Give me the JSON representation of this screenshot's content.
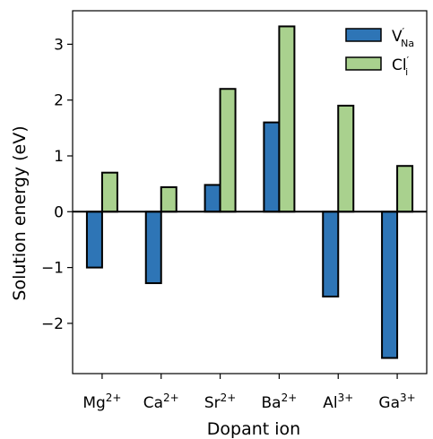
{
  "chart_data": {
    "type": "bar",
    "xlabel": "Dopant ion",
    "ylabel": "Solution energy (eV)",
    "ylim": [
      -2.9,
      3.6
    ],
    "yticks": [
      -2,
      -1,
      0,
      1,
      2,
      3
    ],
    "grid": false,
    "legend_position": "top-right",
    "categories": [
      {
        "base": "Mg",
        "sup": "2+"
      },
      {
        "base": "Ca",
        "sup": "2+"
      },
      {
        "base": "Sr",
        "sup": "2+"
      },
      {
        "base": "Ba",
        "sup": "2+"
      },
      {
        "base": "Al",
        "sup": "3+"
      },
      {
        "base": "Ga",
        "sup": "3+"
      }
    ],
    "series": [
      {
        "base": "V",
        "sup": "′",
        "sub": "Na",
        "color": "#2e75b6",
        "values": [
          -1.0,
          -1.28,
          0.48,
          1.6,
          -1.52,
          -2.62
        ]
      },
      {
        "base": "Cl",
        "sup": "′",
        "sub": "i",
        "color": "#a9d18e",
        "values": [
          0.7,
          0.44,
          2.2,
          3.32,
          1.9,
          0.82
        ]
      }
    ]
  }
}
